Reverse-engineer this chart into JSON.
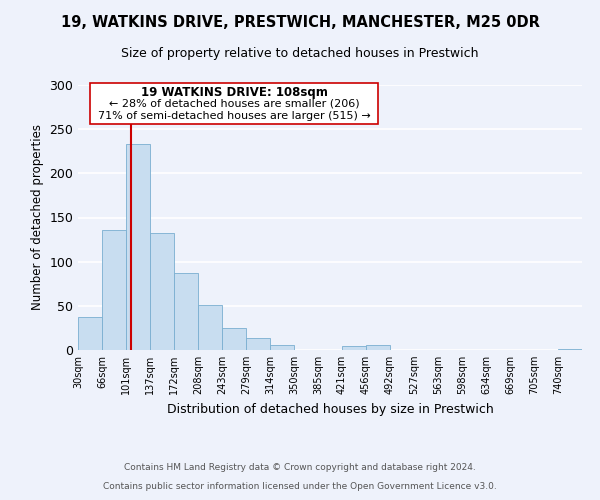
{
  "title": "19, WATKINS DRIVE, PRESTWICH, MANCHESTER, M25 0DR",
  "subtitle": "Size of property relative to detached houses in Prestwich",
  "xlabel": "Distribution of detached houses by size in Prestwich",
  "ylabel": "Number of detached properties",
  "bar_color": "#c8ddf0",
  "bar_edge_color": "#7aaed0",
  "bin_labels": [
    "30sqm",
    "66sqm",
    "101sqm",
    "137sqm",
    "172sqm",
    "208sqm",
    "243sqm",
    "279sqm",
    "314sqm",
    "350sqm",
    "385sqm",
    "421sqm",
    "456sqm",
    "492sqm",
    "527sqm",
    "563sqm",
    "598sqm",
    "634sqm",
    "669sqm",
    "705sqm",
    "740sqm"
  ],
  "bar_heights": [
    37,
    136,
    233,
    132,
    87,
    51,
    25,
    14,
    6,
    0,
    0,
    5,
    6,
    0,
    0,
    0,
    0,
    0,
    0,
    0,
    1
  ],
  "ylim": [
    0,
    300
  ],
  "yticks": [
    0,
    50,
    100,
    150,
    200,
    250,
    300
  ],
  "annotation_title": "19 WATKINS DRIVE: 108sqm",
  "annotation_line1": "← 28% of detached houses are smaller (206)",
  "annotation_line2": "71% of semi-detached houses are larger (515) →",
  "footer_line1": "Contains HM Land Registry data © Crown copyright and database right 2024.",
  "footer_line2": "Contains public sector information licensed under the Open Government Licence v3.0.",
  "background_color": "#eef2fb",
  "grid_color": "#ffffff",
  "red_line_color": "#cc0000"
}
